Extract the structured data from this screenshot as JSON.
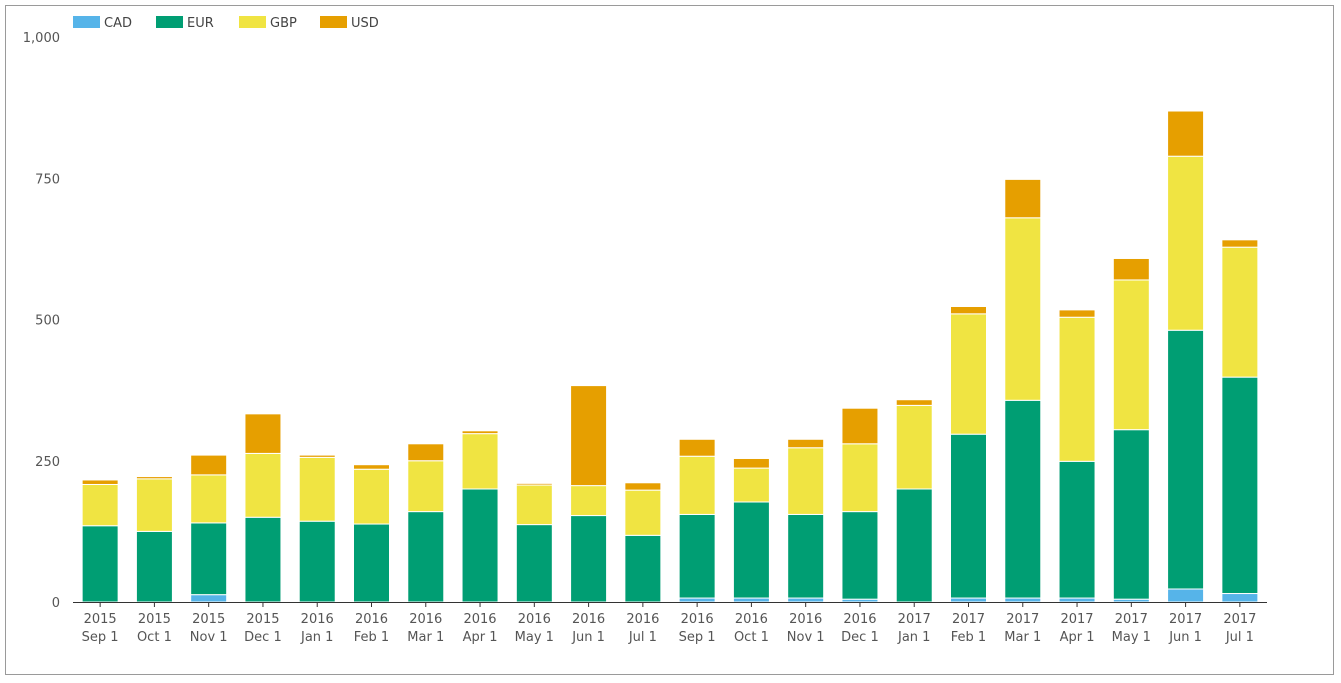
{
  "chart_data": {
    "type": "bar",
    "stacked": true,
    "title": "",
    "xlabel": "",
    "ylabel": "",
    "ylim": [
      0,
      1000
    ],
    "yticks": [
      0,
      250,
      500,
      750,
      1000
    ],
    "ytick_labels": [
      "0",
      "250",
      "500",
      "750",
      "1,000"
    ],
    "legend_position": "top-left",
    "grid": false,
    "categories": [
      [
        "2015",
        "Sep 1"
      ],
      [
        "2015",
        "Oct 1"
      ],
      [
        "2015",
        "Nov 1"
      ],
      [
        "2015",
        "Dec 1"
      ],
      [
        "2016",
        "Jan 1"
      ],
      [
        "2016",
        "Feb 1"
      ],
      [
        "2016",
        "Mar 1"
      ],
      [
        "2016",
        "Apr 1"
      ],
      [
        "2016",
        "May 1"
      ],
      [
        "2016",
        "Jun 1"
      ],
      [
        "2016",
        "Jul 1"
      ],
      [
        "2016",
        "Sep 1"
      ],
      [
        "2016",
        "Oct 1"
      ],
      [
        "2016",
        "Nov 1"
      ],
      [
        "2016",
        "Dec 1"
      ],
      [
        "2017",
        "Jan 1"
      ],
      [
        "2017",
        "Feb 1"
      ],
      [
        "2017",
        "Mar 1"
      ],
      [
        "2017",
        "Apr 1"
      ],
      [
        "2017",
        "May 1"
      ],
      [
        "2017",
        "Jun 1"
      ],
      [
        "2017",
        "Jul 1"
      ]
    ],
    "series": [
      {
        "name": "CAD",
        "color": "#56b4e9",
        "values": [
          0,
          0,
          13,
          0,
          0,
          0,
          0,
          0,
          0,
          0,
          0,
          7,
          7,
          7,
          5,
          0,
          7,
          7,
          7,
          5,
          23,
          15
        ]
      },
      {
        "name": "EUR",
        "color": "#009e73",
        "values": [
          135,
          125,
          127,
          150,
          143,
          138,
          160,
          200,
          137,
          153,
          118,
          148,
          170,
          148,
          155,
          200,
          290,
          350,
          242,
          300,
          458,
          383
        ]
      },
      {
        "name": "GBP",
        "color": "#f0e442",
        "values": [
          73,
          93,
          85,
          113,
          113,
          97,
          90,
          98,
          70,
          53,
          80,
          103,
          60,
          118,
          120,
          148,
          213,
          323,
          255,
          265,
          308,
          230
        ]
      },
      {
        "name": "USD",
        "color": "#e69f00",
        "values": [
          8,
          4,
          35,
          70,
          4,
          8,
          30,
          5,
          3,
          177,
          13,
          30,
          17,
          15,
          63,
          10,
          13,
          68,
          13,
          38,
          80,
          13
        ]
      }
    ]
  }
}
